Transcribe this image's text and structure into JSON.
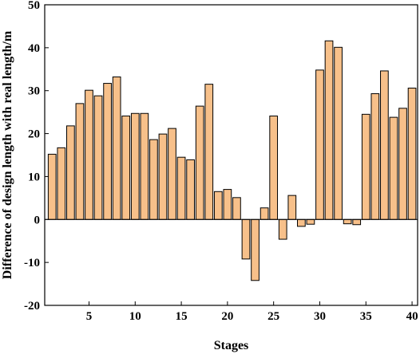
{
  "chart_data": {
    "type": "bar",
    "title": "",
    "xlabel": "Stages",
    "ylabel": "Difference of design length with real length/m",
    "x": [
      1,
      2,
      3,
      4,
      5,
      6,
      7,
      8,
      9,
      10,
      11,
      12,
      13,
      14,
      15,
      16,
      17,
      18,
      19,
      20,
      21,
      22,
      23,
      24,
      25,
      26,
      27,
      28,
      29,
      30,
      31,
      32,
      33,
      34,
      35,
      36,
      37,
      38,
      39,
      40
    ],
    "values": [
      15.2,
      16.7,
      21.8,
      27.0,
      30.1,
      28.8,
      31.7,
      33.2,
      24.1,
      24.7,
      24.7,
      18.6,
      19.9,
      21.2,
      14.5,
      13.9,
      26.4,
      31.5,
      6.5,
      7.0,
      5.1,
      -9.2,
      -14.2,
      2.7,
      24.1,
      -4.6,
      5.6,
      -1.6,
      -1.1,
      34.8,
      41.6,
      40.1,
      -1.0,
      -1.2,
      24.5,
      29.3,
      34.6,
      23.8,
      25.9,
      30.6
    ],
    "xticks": [
      5,
      10,
      15,
      20,
      25,
      30,
      35,
      40
    ],
    "yticks": [
      -20,
      -10,
      0,
      10,
      20,
      30,
      40,
      50
    ],
    "xlim": [
      0.2,
      40.6
    ],
    "ylim": [
      -20,
      50
    ],
    "grid": false,
    "bar_color": "#f7c08a",
    "edge_color": "#000000"
  }
}
